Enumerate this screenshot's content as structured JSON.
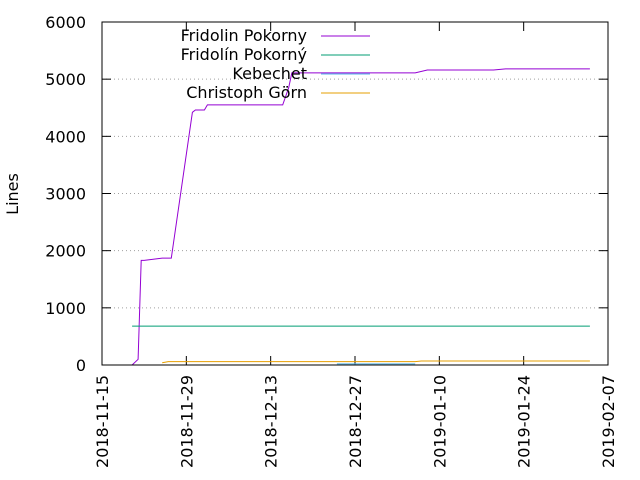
{
  "chart_data": {
    "type": "line",
    "title": "",
    "xlabel": "",
    "ylabel": "Lines",
    "ylim": [
      0,
      6000
    ],
    "yticks": [
      0,
      1000,
      2000,
      3000,
      4000,
      5000,
      6000
    ],
    "xlim": [
      "2018-11-15",
      "2019-02-07"
    ],
    "xticks": [
      "2018-11-15",
      "2018-11-29",
      "2018-12-13",
      "2018-12-27",
      "2019-01-10",
      "2019-01-24",
      "2019-02-07"
    ],
    "grid": true,
    "legend_position": "top-left",
    "series": [
      {
        "name": "Fridolin Pokorny",
        "color": "#9400d3",
        "x": [
          "2018-11-20",
          "2018-11-21",
          "2018-11-21.5",
          "2018-11-22",
          "2018-11-25",
          "2018-11-26.5",
          "2018-11-30",
          "2018-11-30.5",
          "2018-12-02",
          "2018-12-02.5",
          "2018-12-15",
          "2018-12-16",
          "2018-12-16.5",
          "2019-01-06",
          "2019-01-08",
          "2019-01-19",
          "2019-01-21",
          "2019-02-04"
        ],
        "y": [
          0,
          100,
          1830,
          1830,
          1870,
          1870,
          4420,
          4460,
          4460,
          4550,
          4550,
          4850,
          5110,
          5110,
          5160,
          5160,
          5180,
          5180
        ]
      },
      {
        "name": "Fridolín Pokorný",
        "color": "#009e73",
        "x": [
          "2018-11-20",
          "2019-02-04"
        ],
        "y": [
          680,
          680
        ]
      },
      {
        "name": "Kebechet",
        "color": "#56b4e9",
        "x": [
          "2018-12-24",
          "2019-01-06"
        ],
        "y": [
          20,
          20
        ]
      },
      {
        "name": "Christoph Görn",
        "color": "#e69f00",
        "x": [
          "2018-11-25",
          "2018-11-26",
          "2019-01-06",
          "2019-01-07",
          "2019-02-04"
        ],
        "y": [
          40,
          60,
          60,
          70,
          70
        ]
      }
    ]
  }
}
